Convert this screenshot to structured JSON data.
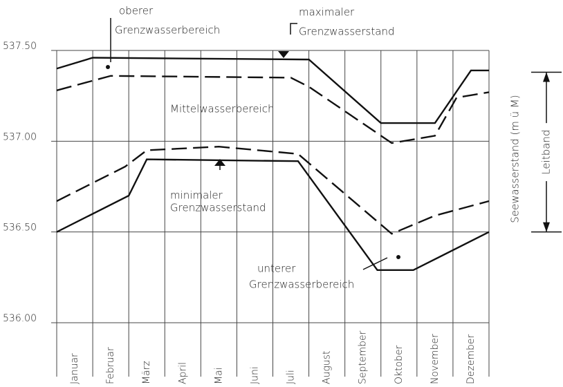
{
  "chart_data": {
    "type": "line",
    "categories": [
      "Januar",
      "Februar",
      "März",
      "April",
      "Mai",
      "Juni",
      "Juli",
      "August",
      "September",
      "Oktober",
      "November",
      "Dezember"
    ],
    "xlim": [
      0,
      12
    ],
    "xticks": [
      0,
      1,
      2,
      3,
      4,
      5,
      6,
      7,
      8,
      9,
      10,
      11,
      12
    ],
    "ylim": [
      536.0,
      537.5
    ],
    "yticks": [
      {
        "value": 536.0,
        "label": "536.00"
      },
      {
        "value": 536.5,
        "label": "536.50"
      },
      {
        "value": 537.0,
        "label": "537.00"
      },
      {
        "value": 537.5,
        "label": "537.50"
      }
    ],
    "ylabel": "Seewasserstand (m ü M)",
    "grid": true,
    "series": [
      {
        "color": "#111",
        "style": "solid",
        "x": [
          0,
          1,
          7,
          9,
          10.5,
          11.5,
          12
        ],
        "values": [
          537.4,
          537.46,
          537.45,
          537.1,
          537.1,
          537.39,
          537.39
        ]
      },
      {
        "color": "#111",
        "style": "dashed",
        "x": [
          0,
          1.5,
          6.5,
          7,
          9.3,
          10.5,
          11.1,
          12
        ],
        "values": [
          537.28,
          537.36,
          537.35,
          537.3,
          536.99,
          537.03,
          537.24,
          537.27
        ]
      },
      {
        "color": "#111",
        "style": "dashed",
        "x": [
          0,
          1.9,
          2.5,
          4.5,
          6.7,
          9.3,
          10.5,
          12
        ],
        "values": [
          536.67,
          536.86,
          536.95,
          536.97,
          536.93,
          536.49,
          536.59,
          536.67
        ]
      },
      {
        "color": "#111",
        "style": "solid",
        "x": [
          0,
          2,
          2.5,
          6.7,
          8.9,
          9.9,
          12
        ],
        "values": [
          536.5,
          536.7,
          536.9,
          536.89,
          536.29,
          536.29,
          536.5
        ]
      }
    ],
    "annotations": [
      "oberer",
      "Grenzwasserbereich",
      "maximaler",
      "Grenzwasserstand",
      "Mittelwasserbereich",
      "minimaler",
      "Grenzwasserstand",
      "unterer",
      "Grenzwasserbereich"
    ],
    "leitband": {
      "label": "Leitband",
      "range": [
        537.38,
        536.5
      ]
    }
  }
}
